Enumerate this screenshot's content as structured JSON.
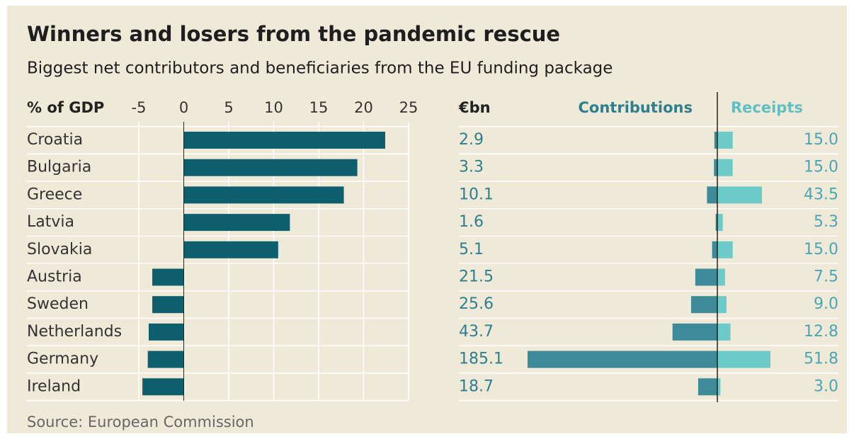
{
  "title": "Winners and losers from the pandemic rescue",
  "subtitle": "Biggest net contributors and beneficiaries from the EU funding package",
  "source": "Source: European Commission",
  "chart_data": [
    {
      "type": "bar",
      "orientation": "horizontal",
      "axis_label": "% of GDP",
      "categories": [
        "Croatia",
        "Bulgaria",
        "Greece",
        "Latvia",
        "Slovakia",
        "Austria",
        "Sweden",
        "Netherlands",
        "Germany",
        "Ireland"
      ],
      "values": [
        22.4,
        19.3,
        17.8,
        11.8,
        10.5,
        -3.5,
        -3.5,
        -3.9,
        -4.0,
        -4.6
      ],
      "color": "#0e5f6e",
      "xlim": [
        -5,
        25
      ],
      "xticks": [
        -5,
        0,
        5,
        10,
        15,
        20,
        25
      ],
      "grid": true
    },
    {
      "type": "diverging-bar",
      "unit_label": "€bn",
      "series": [
        {
          "name": "Contributions",
          "color": "#3d8b99",
          "values": [
            2.9,
            3.3,
            10.1,
            1.6,
            5.1,
            21.5,
            25.6,
            43.7,
            185.1,
            18.7
          ]
        },
        {
          "name": "Receipts",
          "color": "#6ccac8",
          "values": [
            15.0,
            15.0,
            43.5,
            5.3,
            15.0,
            7.5,
            9.0,
            12.8,
            51.8,
            3.0
          ],
          "value_labels": [
            "15.0",
            "15.0",
            "43.5",
            "5.3",
            "15.0",
            "7.5",
            "9.0",
            "12.8",
            "51.8",
            "3.0"
          ]
        }
      ]
    }
  ]
}
